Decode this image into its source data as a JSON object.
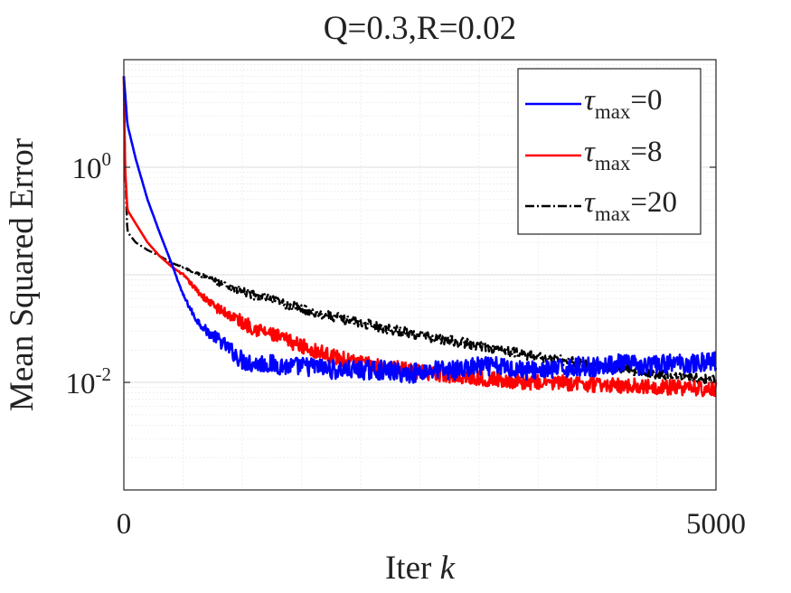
{
  "chart_data": {
    "type": "line",
    "title": "Q=0.3,R=0.02",
    "xlabel_text": "Iter",
    "xlabel_var": "k",
    "ylabel": "Mean Squared Error",
    "xlim": [
      0,
      5000
    ],
    "ylim": [
      0.001,
      10
    ],
    "yscale": "log",
    "x_ticks": [
      "0",
      "5000"
    ],
    "y_ticks": [
      {
        "base": "10",
        "exp": "0",
        "value": 1
      },
      {
        "base": "10",
        "exp": "-2",
        "value": 0.01
      }
    ],
    "grid": true,
    "legend_placement": "top-right",
    "legend_symbol": "τ",
    "legend_sub": "max",
    "series": [
      {
        "name": "τmax=0",
        "value_label": "=0",
        "color": "#0000ff",
        "dash": "solid",
        "x": [
          0,
          30,
          100,
          200,
          300,
          400,
          500,
          600,
          700,
          800,
          900,
          1000,
          1100,
          1200,
          1400,
          1600,
          1800,
          2000,
          2200,
          2400,
          2600,
          2800,
          3000,
          3200,
          3400,
          3600,
          3800,
          4000,
          4200,
          4400,
          4600,
          4800,
          5000
        ],
        "y": [
          7.0,
          2.5,
          1.2,
          0.5,
          0.25,
          0.13,
          0.065,
          0.04,
          0.03,
          0.025,
          0.02,
          0.016,
          0.015,
          0.015,
          0.014,
          0.014,
          0.013,
          0.013,
          0.013,
          0.012,
          0.013,
          0.013,
          0.014,
          0.014,
          0.013,
          0.013,
          0.014,
          0.014,
          0.015,
          0.014,
          0.015,
          0.015,
          0.016
        ],
        "noise": 0.09
      },
      {
        "name": "τmax=8",
        "value_label": "=8",
        "color": "#ff0000",
        "dash": "solid",
        "x": [
          0,
          10,
          30,
          100,
          200,
          300,
          400,
          500,
          600,
          700,
          800,
          900,
          1000,
          1200,
          1400,
          1600,
          1800,
          2000,
          2200,
          2400,
          2600,
          2800,
          3000,
          3200,
          3400,
          3600,
          3800,
          4000,
          4200,
          4400,
          4600,
          4800,
          5000
        ],
        "y": [
          7.0,
          1.0,
          0.4,
          0.3,
          0.2,
          0.15,
          0.12,
          0.1,
          0.075,
          0.058,
          0.048,
          0.042,
          0.036,
          0.029,
          0.024,
          0.02,
          0.017,
          0.015,
          0.014,
          0.013,
          0.012,
          0.0115,
          0.011,
          0.0105,
          0.01,
          0.01,
          0.0098,
          0.0095,
          0.0093,
          0.0092,
          0.009,
          0.0088,
          0.0087
        ],
        "noise": 0.07
      },
      {
        "name": "τmax=20",
        "value_label": "=20",
        "color": "#000000",
        "dash": "dashdot",
        "x": [
          0,
          10,
          30,
          100,
          200,
          300,
          400,
          600,
          800,
          1000,
          1200,
          1400,
          1600,
          1800,
          2000,
          2200,
          2400,
          2600,
          2800,
          3000,
          3200,
          3400,
          3600,
          3800,
          4000,
          4200,
          4400,
          4600,
          4800,
          5000
        ],
        "y": [
          7.0,
          1.0,
          0.25,
          0.2,
          0.17,
          0.15,
          0.13,
          0.105,
          0.085,
          0.07,
          0.06,
          0.052,
          0.045,
          0.04,
          0.036,
          0.032,
          0.029,
          0.026,
          0.024,
          0.022,
          0.02,
          0.018,
          0.0165,
          0.0155,
          0.0145,
          0.0135,
          0.0125,
          0.0115,
          0.011,
          0.0105
        ],
        "noise": 0.045
      }
    ]
  }
}
